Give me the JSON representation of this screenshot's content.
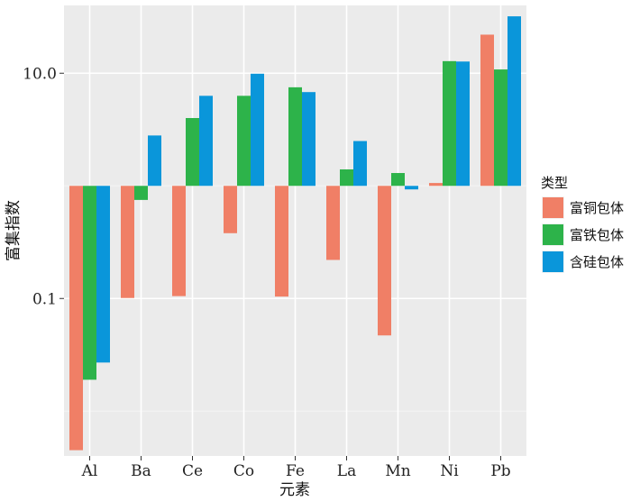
{
  "chart_data": {
    "type": "bar",
    "ylog": true,
    "baseline": 1,
    "xlabel": "元素",
    "ylabel": "富集指数",
    "categories": [
      "Al",
      "Ba",
      "Ce",
      "Co",
      "Fe",
      "La",
      "Mn",
      "Ni",
      "Pb"
    ],
    "y_ticks": [
      0.1,
      10.0
    ],
    "y_tick_labels": [
      "0.1",
      "10.0"
    ],
    "ylim": [
      0.004,
      40
    ],
    "grid": true,
    "legend": {
      "title": "类型",
      "position": "right"
    },
    "series": [
      {
        "name": "富铜包体",
        "color": "#F07F66",
        "values": [
          0.0045,
          0.101,
          0.105,
          0.38,
          0.104,
          0.22,
          0.047,
          1.06,
          22.0
        ]
      },
      {
        "name": "富铁包体",
        "color": "#2DB34A",
        "values": [
          0.019,
          0.75,
          4.0,
          6.3,
          7.5,
          1.4,
          1.3,
          12.8,
          10.8
        ]
      },
      {
        "name": "含硅包体",
        "color": "#0A96DA",
        "values": [
          0.027,
          2.8,
          6.3,
          9.9,
          6.8,
          2.5,
          0.93,
          12.7,
          32.0
        ]
      }
    ]
  }
}
